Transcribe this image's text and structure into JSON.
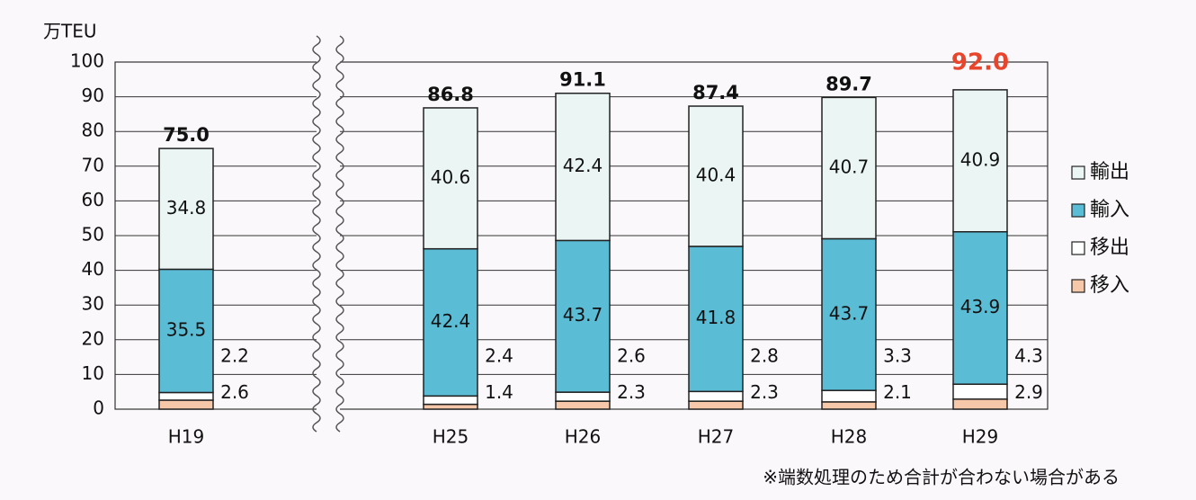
{
  "chart_data": {
    "type": "stacked-bar",
    "y_axis_label": "万TEU",
    "categories": [
      "H19",
      "H25",
      "H26",
      "H27",
      "H28",
      "H29"
    ],
    "series": [
      {
        "name": "移入",
        "color": "#f6c7a8",
        "values": [
          2.6,
          1.4,
          2.3,
          2.3,
          2.1,
          2.9
        ]
      },
      {
        "name": "移出",
        "color": "#ffffff",
        "values": [
          2.2,
          2.4,
          2.6,
          2.8,
          3.3,
          4.3
        ]
      },
      {
        "name": "輸入",
        "color": "#5bbcd6",
        "values": [
          35.5,
          42.4,
          43.7,
          41.8,
          43.7,
          43.9
        ]
      },
      {
        "name": "輸出",
        "color": "#eaf5f4",
        "values": [
          34.8,
          40.6,
          42.4,
          40.4,
          40.7,
          40.9
        ]
      }
    ],
    "totals": {
      "values": [
        75,
        86.8,
        91.1,
        87.4,
        89.7,
        92
      ],
      "value_labels": [
        "75.0",
        "86.8",
        "91.1",
        "87.4",
        "89.7",
        "92.0"
      ],
      "colors": [
        "#111111",
        "#111111",
        "#111111",
        "#111111",
        "#111111",
        "#e8452c"
      ]
    },
    "ylim": [
      0,
      100
    ],
    "yticks": [
      0,
      10,
      20,
      30,
      40,
      50,
      60,
      70,
      80,
      90,
      100
    ],
    "grid": true,
    "note": "※端数処理のため合計が合わない場合がある"
  }
}
